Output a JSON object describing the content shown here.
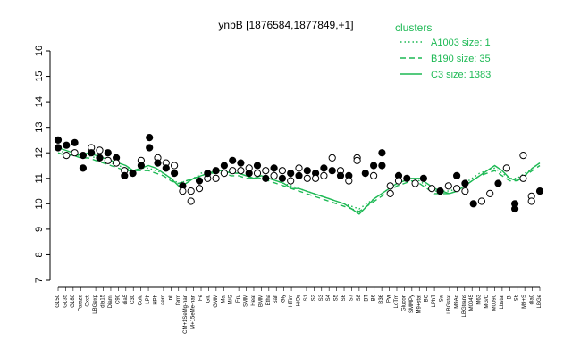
{
  "chart_data": {
    "type": "line",
    "title": "ynbB [1876584,1877849,+1]",
    "xlabel": "",
    "ylabel": "",
    "ylim": [
      7,
      16
    ],
    "yticks": [
      7,
      8,
      9,
      10,
      11,
      12,
      13,
      14,
      15,
      16
    ],
    "grid": false,
    "legend": {
      "title": "clusters",
      "placement": "top-right",
      "entries": [
        {
          "label": "A1003 size: 1",
          "style": "dotted",
          "color": "#1db954"
        },
        {
          "label": "B190 size: 35",
          "style": "dashed",
          "color": "#1db954"
        },
        {
          "label": "C3 size: 1383",
          "style": "solid",
          "color": "#1db954"
        }
      ]
    },
    "x_tick_labels": [
      "G150",
      "G135",
      "G180",
      "Parazq",
      "Oxctl",
      "LBGexp",
      "dia15",
      "Diami",
      "C90",
      "dia5",
      "C30",
      "Cold",
      "LPh",
      "HPh",
      "aero",
      "nit",
      "ferm",
      "CM+1SeMg-nan",
      "M+15eMe-nan",
      "Fe",
      "Glu",
      "GMM",
      "Mal",
      "M/G",
      "Fru",
      "SMM",
      "Heat",
      "BMM",
      "Etha",
      "Salt",
      "Gly",
      "HTim",
      "HiOs",
      "S1",
      "S2",
      "S3",
      "S4",
      "S5",
      "S6",
      "S7",
      "S8",
      "BT",
      "B6",
      "B36",
      "Pyr",
      "LoTm",
      "Glucon",
      "SMMPy",
      "M9+stat",
      "BC",
      "LPhT",
      "Sw",
      "LBGstat",
      "M9Ad",
      "LBGtrans",
      "M0045",
      "M63",
      "MG/C",
      "M0090",
      "Lbstat",
      "Bl",
      "Sb",
      "M9+S",
      "dia0",
      "LBGe"
    ],
    "series": [
      {
        "name": "",
        "style": "solid",
        "values": [
          12.2,
          12.1,
          12.0,
          11.9,
          12.0,
          11.9,
          11.8,
          11.7,
          11.6,
          11.5,
          11.3,
          11.4,
          11.5,
          11.4,
          11.2,
          11.0,
          10.7,
          10.8,
          11.0,
          11.1,
          11.2,
          11.3,
          11.3,
          11.2,
          11.2,
          11.1,
          11.0,
          11.1,
          11.0,
          10.9,
          10.8,
          10.6,
          10.6,
          10.5,
          10.4,
          10.3,
          10.2,
          10.1,
          10.0,
          9.8,
          9.6,
          9.9,
          10.2,
          10.4,
          10.6,
          10.8,
          10.9,
          11.0,
          11.0,
          10.8,
          10.6,
          10.5,
          10.4,
          10.5,
          10.7,
          10.9,
          11.1,
          11.3,
          11.5,
          11.3,
          11.0,
          10.9,
          11.1,
          11.4,
          11.6
        ]
      },
      {
        "name": "",
        "style": "dotted",
        "values": [
          12.1,
          12.0,
          11.9,
          11.9,
          11.9,
          11.8,
          11.7,
          11.6,
          11.5,
          11.4,
          11.3,
          11.4,
          11.4,
          11.3,
          11.2,
          11.0,
          10.8,
          10.9,
          11.0,
          11.2,
          11.3,
          11.3,
          11.3,
          11.2,
          11.2,
          11.1,
          11.0,
          11.0,
          11.0,
          10.9,
          10.8,
          10.7,
          10.6,
          10.5,
          10.4,
          10.3,
          10.2,
          10.1,
          10.0,
          9.9,
          9.8,
          10.0,
          10.2,
          10.4,
          10.6,
          10.8,
          10.9,
          11.0,
          10.9,
          10.7,
          10.5,
          10.5,
          10.5,
          10.6,
          10.8,
          11.0,
          11.2,
          11.3,
          11.4,
          11.2,
          11.0,
          11.0,
          11.2,
          11.4,
          11.6
        ]
      },
      {
        "name": "",
        "style": "dashed",
        "values": [
          12.0,
          11.9,
          11.9,
          11.8,
          11.8,
          11.7,
          11.6,
          11.5,
          11.4,
          11.3,
          11.3,
          11.3,
          11.3,
          11.2,
          11.1,
          10.9,
          10.8,
          10.9,
          11.0,
          11.1,
          11.2,
          11.2,
          11.2,
          11.1,
          11.1,
          11.0,
          11.0,
          11.0,
          10.9,
          10.8,
          10.7,
          10.6,
          10.5,
          10.4,
          10.3,
          10.2,
          10.1,
          10.0,
          9.9,
          9.8,
          9.7,
          9.9,
          10.1,
          10.3,
          10.5,
          10.7,
          10.8,
          10.9,
          10.8,
          10.6,
          10.4,
          10.4,
          10.4,
          10.5,
          10.7,
          10.9,
          11.1,
          11.2,
          11.3,
          11.1,
          10.9,
          10.9,
          11.1,
          11.3,
          11.5
        ]
      }
    ],
    "points": [
      {
        "x": 0,
        "y": 12.2,
        "filled": true
      },
      {
        "x": 0,
        "y": 12.5,
        "filled": true
      },
      {
        "x": 1,
        "y": 12.3,
        "filled": true
      },
      {
        "x": 1,
        "y": 11.9,
        "filled": false
      },
      {
        "x": 2,
        "y": 12.4,
        "filled": true
      },
      {
        "x": 2,
        "y": 12.0,
        "filled": false
      },
      {
        "x": 3,
        "y": 11.9,
        "filled": true
      },
      {
        "x": 3,
        "y": 11.4,
        "filled": true
      },
      {
        "x": 4,
        "y": 12.2,
        "filled": false
      },
      {
        "x": 4,
        "y": 12.0,
        "filled": true
      },
      {
        "x": 5,
        "y": 12.1,
        "filled": false
      },
      {
        "x": 5,
        "y": 11.8,
        "filled": true
      },
      {
        "x": 6,
        "y": 12.0,
        "filled": true
      },
      {
        "x": 6,
        "y": 11.7,
        "filled": false
      },
      {
        "x": 7,
        "y": 11.8,
        "filled": true
      },
      {
        "x": 7,
        "y": 11.6,
        "filled": false
      },
      {
        "x": 8,
        "y": 11.3,
        "filled": false
      },
      {
        "x": 8,
        "y": 11.1,
        "filled": true
      },
      {
        "x": 9,
        "y": 11.2,
        "filled": true
      },
      {
        "x": 10,
        "y": 11.7,
        "filled": false
      },
      {
        "x": 10,
        "y": 11.5,
        "filled": true
      },
      {
        "x": 11,
        "y": 12.6,
        "filled": true
      },
      {
        "x": 11,
        "y": 12.2,
        "filled": true
      },
      {
        "x": 12,
        "y": 11.8,
        "filled": false
      },
      {
        "x": 12,
        "y": 11.6,
        "filled": true
      },
      {
        "x": 13,
        "y": 11.6,
        "filled": false
      },
      {
        "x": 13,
        "y": 11.4,
        "filled": true
      },
      {
        "x": 14,
        "y": 11.5,
        "filled": false
      },
      {
        "x": 14,
        "y": 11.2,
        "filled": true
      },
      {
        "x": 15,
        "y": 10.7,
        "filled": true
      },
      {
        "x": 15,
        "y": 10.5,
        "filled": false
      },
      {
        "x": 16,
        "y": 10.5,
        "filled": false
      },
      {
        "x": 16,
        "y": 10.1,
        "filled": false
      },
      {
        "x": 17,
        "y": 10.9,
        "filled": true
      },
      {
        "x": 17,
        "y": 10.6,
        "filled": false
      },
      {
        "x": 18,
        "y": 11.0,
        "filled": false
      },
      {
        "x": 18,
        "y": 11.2,
        "filled": true
      },
      {
        "x": 19,
        "y": 11.3,
        "filled": true
      },
      {
        "x": 19,
        "y": 11.0,
        "filled": false
      },
      {
        "x": 20,
        "y": 11.5,
        "filled": true
      },
      {
        "x": 20,
        "y": 11.2,
        "filled": false
      },
      {
        "x": 21,
        "y": 11.7,
        "filled": true
      },
      {
        "x": 21,
        "y": 11.3,
        "filled": false
      },
      {
        "x": 22,
        "y": 11.6,
        "filled": true
      },
      {
        "x": 22,
        "y": 11.3,
        "filled": false
      },
      {
        "x": 23,
        "y": 11.4,
        "filled": false
      },
      {
        "x": 23,
        "y": 11.2,
        "filled": true
      },
      {
        "x": 24,
        "y": 11.5,
        "filled": true
      },
      {
        "x": 24,
        "y": 11.2,
        "filled": false
      },
      {
        "x": 25,
        "y": 11.3,
        "filled": false
      },
      {
        "x": 25,
        "y": 11.0,
        "filled": true
      },
      {
        "x": 26,
        "y": 11.4,
        "filled": true
      },
      {
        "x": 26,
        "y": 11.1,
        "filled": false
      },
      {
        "x": 27,
        "y": 11.3,
        "filled": false
      },
      {
        "x": 27,
        "y": 11.0,
        "filled": true
      },
      {
        "x": 28,
        "y": 11.2,
        "filled": true
      },
      {
        "x": 28,
        "y": 10.9,
        "filled": false
      },
      {
        "x": 29,
        "y": 11.4,
        "filled": false
      },
      {
        "x": 29,
        "y": 11.1,
        "filled": true
      },
      {
        "x": 30,
        "y": 11.3,
        "filled": true
      },
      {
        "x": 30,
        "y": 11.0,
        "filled": false
      },
      {
        "x": 31,
        "y": 11.2,
        "filled": true
      },
      {
        "x": 31,
        "y": 11.0,
        "filled": false
      },
      {
        "x": 32,
        "y": 11.4,
        "filled": true
      },
      {
        "x": 32,
        "y": 11.1,
        "filled": false
      },
      {
        "x": 33,
        "y": 11.8,
        "filled": false
      },
      {
        "x": 33,
        "y": 11.3,
        "filled": true
      },
      {
        "x": 34,
        "y": 11.3,
        "filled": false
      },
      {
        "x": 34,
        "y": 11.1,
        "filled": true
      },
      {
        "x": 35,
        "y": 11.1,
        "filled": true
      },
      {
        "x": 35,
        "y": 10.9,
        "filled": false
      },
      {
        "x": 36,
        "y": 11.8,
        "filled": false
      },
      {
        "x": 36,
        "y": 11.7,
        "filled": false
      },
      {
        "x": 37,
        "y": 11.2,
        "filled": true
      },
      {
        "x": 38,
        "y": 11.5,
        "filled": true
      },
      {
        "x": 38,
        "y": 11.1,
        "filled": false
      },
      {
        "x": 39,
        "y": 12.0,
        "filled": true
      },
      {
        "x": 39,
        "y": 11.5,
        "filled": true
      },
      {
        "x": 40,
        "y": 10.7,
        "filled": false
      },
      {
        "x": 40,
        "y": 10.4,
        "filled": false
      },
      {
        "x": 41,
        "y": 11.1,
        "filled": true
      },
      {
        "x": 41,
        "y": 10.9,
        "filled": false
      },
      {
        "x": 42,
        "y": 11.0,
        "filled": true
      },
      {
        "x": 43,
        "y": 10.8,
        "filled": false
      },
      {
        "x": 44,
        "y": 11.0,
        "filled": true
      },
      {
        "x": 45,
        "y": 10.6,
        "filled": false
      },
      {
        "x": 46,
        "y": 10.5,
        "filled": true
      },
      {
        "x": 47,
        "y": 10.7,
        "filled": false
      },
      {
        "x": 48,
        "y": 11.1,
        "filled": true
      },
      {
        "x": 48,
        "y": 10.6,
        "filled": false
      },
      {
        "x": 49,
        "y": 10.8,
        "filled": true
      },
      {
        "x": 49,
        "y": 10.5,
        "filled": false
      },
      {
        "x": 50,
        "y": 10.0,
        "filled": true
      },
      {
        "x": 51,
        "y": 10.1,
        "filled": false
      },
      {
        "x": 52,
        "y": 10.4,
        "filled": false
      },
      {
        "x": 53,
        "y": 10.8,
        "filled": true
      },
      {
        "x": 54,
        "y": 11.4,
        "filled": false
      },
      {
        "x": 55,
        "y": 10.0,
        "filled": true
      },
      {
        "x": 55,
        "y": 9.8,
        "filled": true
      },
      {
        "x": 56,
        "y": 11.0,
        "filled": false
      },
      {
        "x": 56,
        "y": 11.9,
        "filled": false
      },
      {
        "x": 57,
        "y": 10.3,
        "filled": false
      },
      {
        "x": 57,
        "y": 10.1,
        "filled": false
      },
      {
        "x": 58,
        "y": 10.5,
        "filled": true
      }
    ]
  }
}
